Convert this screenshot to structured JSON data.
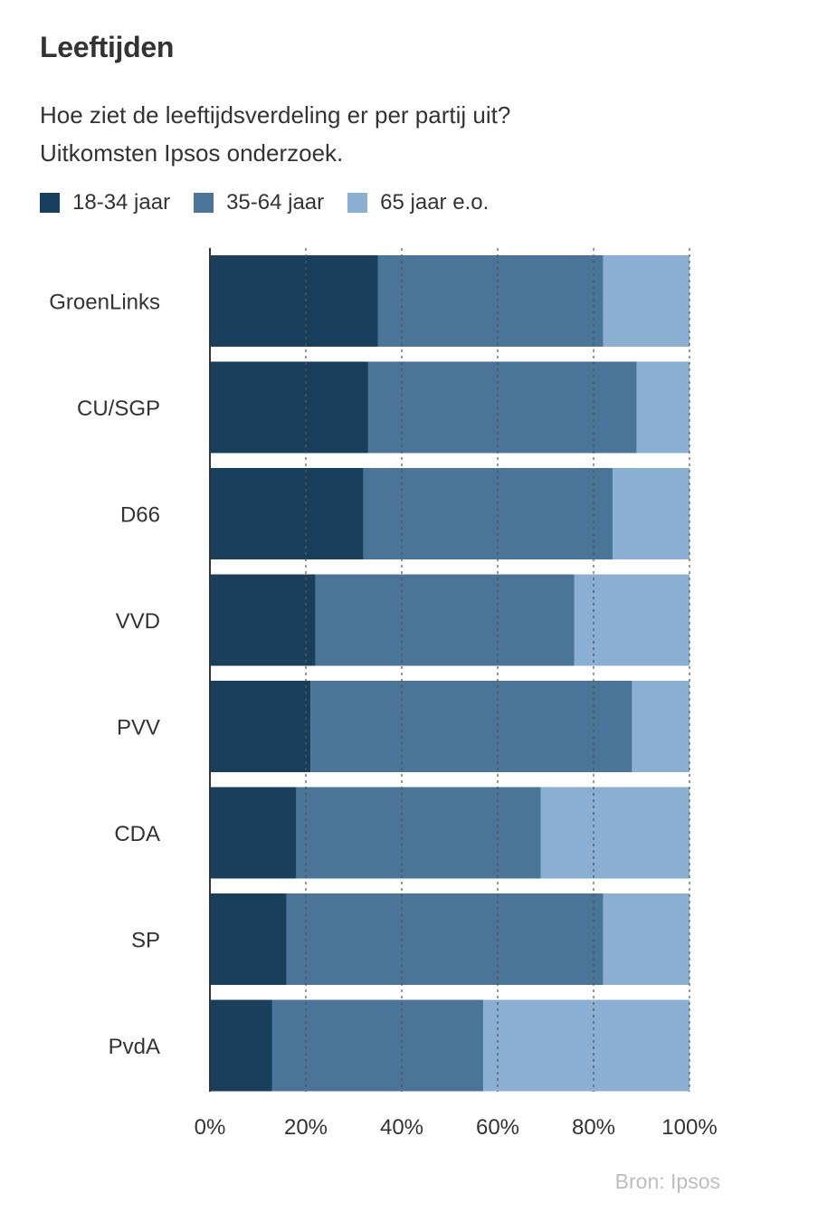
{
  "title": "Leeftijden",
  "subtitle_lines": [
    "Hoe ziet de leeftijdsverdeling er per partij uit?",
    "Uitkomsten Ipsos onderzoek."
  ],
  "source": "Bron: Ipsos",
  "colors": {
    "series_1": "#1a3f5c",
    "series_2": "#4a7598",
    "series_3": "#8aafd3",
    "axis": "#333333",
    "grid": "#555555",
    "source_text": "#bdbdbd"
  },
  "chart_data": {
    "type": "bar",
    "orientation": "horizontal",
    "stacked": true,
    "title": "Leeftijden",
    "subtitle": "Hoe ziet de leeftijdsverdeling er per partij uit? Uitkomsten Ipsos onderzoek.",
    "categories": [
      "GroenLinks",
      "CU/SGP",
      "D66",
      "VVD",
      "PVV",
      "CDA",
      "SP",
      "PvdA"
    ],
    "series": [
      {
        "name": "18-34 jaar",
        "values": [
          35,
          33,
          32,
          22,
          21,
          18,
          16,
          13
        ]
      },
      {
        "name": "35-64 jaar",
        "values": [
          47,
          56,
          52,
          54,
          67,
          51,
          66,
          44
        ]
      },
      {
        "name": "65 jaar e.o.",
        "values": [
          18,
          11,
          16,
          24,
          12,
          31,
          18,
          43
        ]
      }
    ],
    "xlim": [
      0,
      100
    ],
    "xticks": [
      "0%",
      "20%",
      "40%",
      "60%",
      "80%",
      "100%"
    ],
    "grid": true,
    "grid_style": "dashed-vertical",
    "legend_position": "top-left",
    "source": "Bron: Ipsos"
  }
}
